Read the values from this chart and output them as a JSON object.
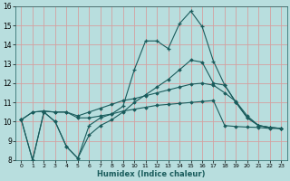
{
  "xlabel": "Humidex (Indice chaleur)",
  "x": [
    0,
    1,
    2,
    3,
    4,
    5,
    6,
    7,
    8,
    9,
    10,
    11,
    12,
    13,
    14,
    15,
    16,
    17,
    18,
    19,
    20,
    21,
    22,
    23
  ],
  "line1": [
    10.1,
    8.0,
    10.5,
    10.0,
    8.7,
    8.1,
    9.8,
    10.2,
    10.4,
    10.8,
    12.7,
    14.2,
    14.2,
    13.8,
    15.1,
    15.75,
    14.95,
    13.15,
    11.9,
    11.0,
    10.2,
    9.8,
    9.7,
    9.65
  ],
  "line2": [
    10.1,
    8.0,
    10.5,
    10.0,
    8.7,
    8.1,
    9.3,
    9.8,
    10.1,
    10.5,
    11.0,
    11.4,
    11.8,
    12.2,
    12.7,
    13.2,
    13.1,
    12.0,
    11.9,
    11.0,
    10.2,
    9.8,
    9.7,
    9.65
  ],
  "line3": [
    10.1,
    10.5,
    10.55,
    10.5,
    10.5,
    10.2,
    10.2,
    10.3,
    10.4,
    10.55,
    10.65,
    10.75,
    10.85,
    10.9,
    10.95,
    11.0,
    11.05,
    11.1,
    9.8,
    9.75,
    9.72,
    9.7,
    9.65,
    9.65
  ],
  "line4": [
    10.1,
    10.5,
    10.55,
    10.5,
    10.5,
    10.3,
    10.5,
    10.7,
    10.9,
    11.1,
    11.2,
    11.35,
    11.5,
    11.65,
    11.8,
    11.95,
    12.0,
    11.9,
    11.5,
    11.05,
    10.3,
    9.8,
    9.7,
    9.65
  ],
  "bg_color": "#b8dede",
  "line_color": "#1a5c5c",
  "grid_color": "#d4a0a0",
  "ylim": [
    8,
    16
  ],
  "xlim": [
    -0.5,
    23.5
  ],
  "yticks": [
    8,
    9,
    10,
    11,
    12,
    13,
    14,
    15,
    16
  ],
  "xticks": [
    0,
    1,
    2,
    3,
    4,
    5,
    6,
    7,
    8,
    9,
    10,
    11,
    12,
    13,
    14,
    15,
    16,
    17,
    18,
    19,
    20,
    21,
    22,
    23
  ]
}
